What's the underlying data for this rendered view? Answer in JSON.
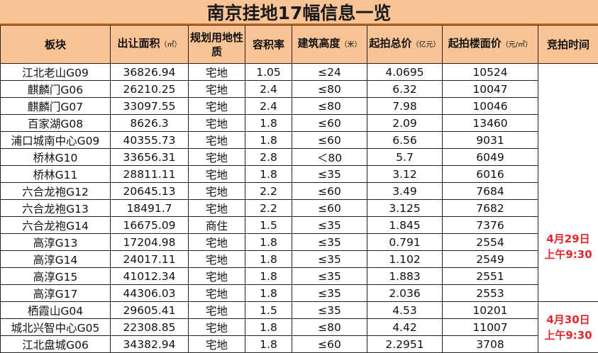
{
  "title": "南京挂地17幅信息一览",
  "headers": [
    {
      "label": "板块",
      "unit": ""
    },
    {
      "label": "出让面积",
      "unit": "（㎡）"
    },
    {
      "label": "规划用地性质",
      "unit": ""
    },
    {
      "label": "容积率",
      "unit": ""
    },
    {
      "label": "建筑高度",
      "unit": "（米）"
    },
    {
      "label": "起拍总价",
      "unit": "（亿元）"
    },
    {
      "label": "起拍楼面价",
      "unit": "（元/㎡）"
    },
    {
      "label": "竞拍时间",
      "unit": ""
    }
  ],
  "rows": [
    [
      "江北老山G09",
      "36826.94",
      "宅地",
      "1.05",
      "≤24",
      "4.0695",
      "10524"
    ],
    [
      "麒麟门G06",
      "26210.25",
      "宅地",
      "2.4",
      "≤80",
      "6.32",
      "10047"
    ],
    [
      "麒麟门G07",
      "33097.55",
      "宅地",
      "2.4",
      "≤80",
      "7.98",
      "10046"
    ],
    [
      "百家湖G08",
      "8626.3",
      "宅地",
      "1.8",
      "≤60",
      "2.09",
      "13460"
    ],
    [
      "浦口城南中心G09",
      "40355.73",
      "宅地",
      "1.8",
      "≤60",
      "6.56",
      "9031"
    ],
    [
      "桥林G10",
      "33656.31",
      "宅地",
      "2.8",
      "＜80",
      "5.7",
      "6049"
    ],
    [
      "桥林G11",
      "28811.11",
      "宅地",
      "1.8",
      "≤35",
      "3.12",
      "6016"
    ],
    [
      "六合龙袍G12",
      "20645.13",
      "宅地",
      "2.2",
      "≤60",
      "3.49",
      "7684"
    ],
    [
      "六合龙袍G13",
      "18491.7",
      "宅地",
      "2.2",
      "≤60",
      "3.125",
      "7682"
    ],
    [
      "六合龙袍G14",
      "16675.09",
      "商住",
      "1.5",
      "≤35",
      "1.845",
      "7376"
    ],
    [
      "高淳G13",
      "17204.98",
      "宅地",
      "1.8",
      "≤35",
      "0.791",
      "2554"
    ],
    [
      "高淳G14",
      "24017.11",
      "宅地",
      "1.8",
      "≤35",
      "1.102",
      "2549"
    ],
    [
      "高淳G15",
      "41012.34",
      "宅地",
      "1.8",
      "≤35",
      "1.883",
      "2551"
    ],
    [
      "高淳G17",
      "44306.03",
      "宅地",
      "1.8",
      "≤35",
      "2.036",
      "2553"
    ],
    [
      "栖霞山G04",
      "29605.41",
      "宅地",
      "1.5",
      "≤35",
      "4.53",
      "10201"
    ],
    [
      "城北兴智中心G05",
      "22308.85",
      "宅地",
      "1.8",
      "≤80",
      "4.42",
      "11007"
    ],
    [
      "江北盘城G06",
      "34382.94",
      "宅地",
      "1.8",
      "≤60",
      "2.2951",
      "3708"
    ]
  ],
  "auction_times": [
    {
      "date": "4月29日",
      "time": "上午9:30"
    },
    {
      "date": "4月30日",
      "time": "上午9:30"
    }
  ],
  "colors": {
    "header_bg": "#f8c496",
    "accent_red": "#e3272d",
    "title_border": "#e06f16"
  }
}
